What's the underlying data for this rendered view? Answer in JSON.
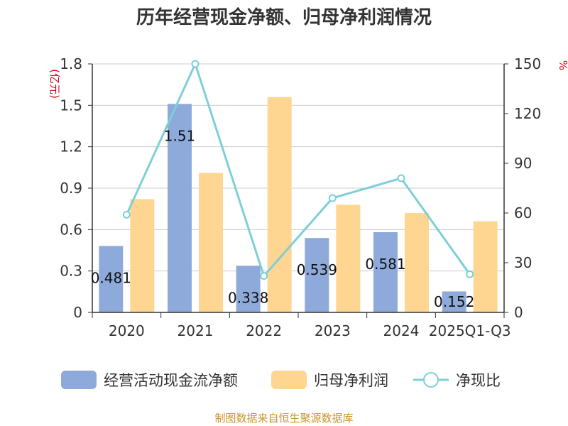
{
  "chart_data": {
    "type": "bar",
    "title": "历年经营现金净额、归母净利润情况",
    "categories": [
      "2020",
      "2021",
      "2022",
      "2023",
      "2024",
      "2025Q1-Q3"
    ],
    "series": [
      {
        "name": "经营活动现金流净额",
        "kind": "bar",
        "axis": "left",
        "color": "#8eaadb",
        "values": [
          0.481,
          1.51,
          0.338,
          0.539,
          0.581,
          0.152
        ],
        "labels": [
          "0.481",
          "1.51",
          "0.338",
          "0.539",
          "0.581",
          "0.152"
        ]
      },
      {
        "name": "归母净利润",
        "kind": "bar",
        "axis": "left",
        "color": "#ffd592",
        "values": [
          0.82,
          1.01,
          1.56,
          0.78,
          0.72,
          0.66
        ]
      },
      {
        "name": "净现比",
        "kind": "line",
        "axis": "right",
        "color": "#7fcfd6",
        "values": [
          59,
          150,
          22,
          69,
          81,
          23
        ]
      }
    ],
    "left_axis": {
      "unit": "(亿元)",
      "ylim": [
        0,
        1.8
      ],
      "ticks": [
        "0",
        "0.3",
        "0.6",
        "0.9",
        "1.2",
        "1.5",
        "1.8"
      ]
    },
    "right_axis": {
      "unit": "%",
      "ylim": [
        0,
        150
      ],
      "ticks": [
        "0",
        "30",
        "60",
        "90",
        "120",
        "150"
      ]
    },
    "grid": true,
    "legend": "bottom"
  },
  "footer": {
    "source": "制图数据来自恒生聚源数据库"
  }
}
